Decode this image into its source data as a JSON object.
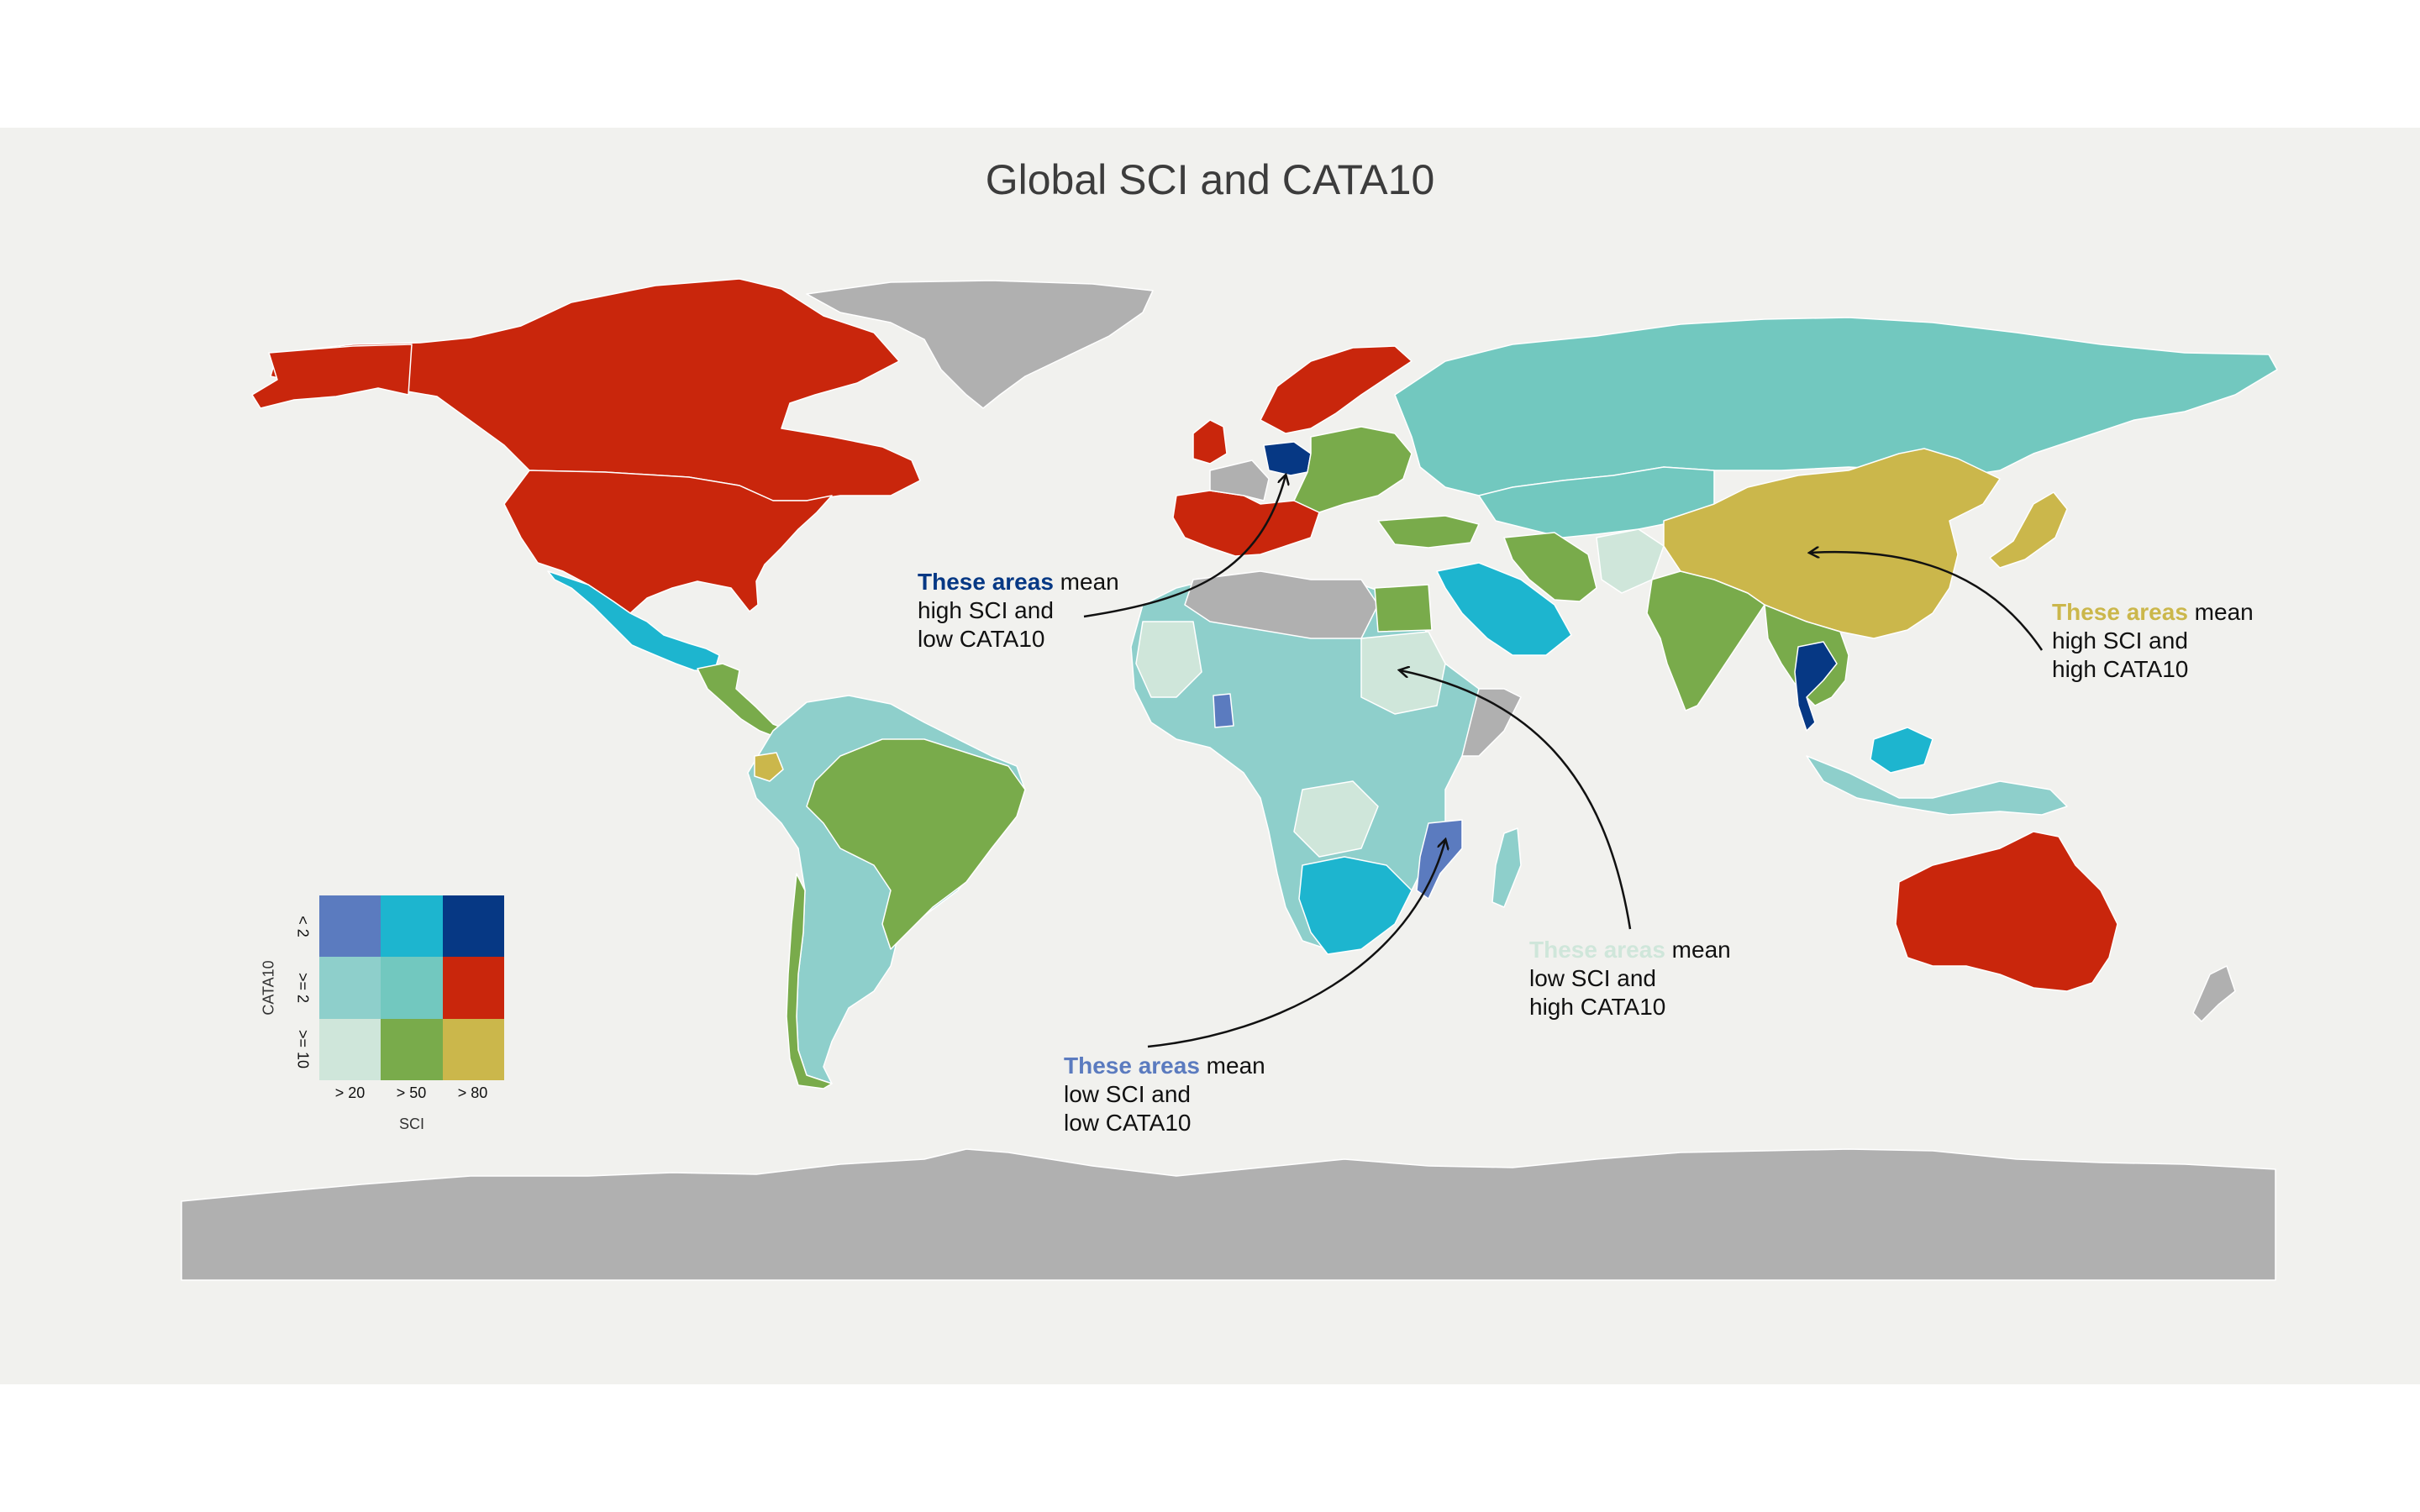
{
  "title": "Global SCI and CATA10",
  "colors": {
    "background": "#f1f1ee",
    "no_data": "#b0b0b0",
    "border": "#ffffff",
    "bivariate": {
      "low_sci_low_cata": "#5b7bbf",
      "mid_sci_low_cata": "#1db5cf",
      "high_sci_low_cata": "#063884",
      "low_sci_mid_cata": "#8ecfcb",
      "mid_sci_mid_cata": "#72c8bf",
      "high_sci_mid_cata": "#c9260c",
      "low_sci_high_cata": "#cfe6da",
      "mid_sci_high_cata": "#79ab4b",
      "high_sci_high_cata": "#cbb74b"
    }
  },
  "annotations": [
    {
      "id": "high-sci-low-cata",
      "highlight": "These areas",
      "rest": " mean",
      "line2": "high SCI and",
      "line3": "low CATA10",
      "color": "#063884"
    },
    {
      "id": "high-sci-high-cata",
      "highlight": "These areas",
      "rest": " mean",
      "line2": "high SCI and",
      "line3": "high CATA10",
      "color": "#cbb74b"
    },
    {
      "id": "low-sci-high-cata",
      "highlight": "These areas",
      "rest": " mean",
      "line2": "low SCI and",
      "line3": "high CATA10",
      "color": "#cfe6da"
    },
    {
      "id": "low-sci-low-cata",
      "highlight": "These areas",
      "rest": " mean",
      "line2": "low SCI and",
      "line3": "low CATA10",
      "color": "#5b7bbf"
    }
  ],
  "legend": {
    "x_label": "SCI",
    "y_label": "CATA10",
    "x_ticks": [
      "> 20",
      "> 50",
      "> 80"
    ],
    "y_ticks": [
      "< 2",
      ">= 2",
      ">= 10"
    ],
    "grid": [
      [
        "#5b7bbf",
        "#1db5cf",
        "#063884"
      ],
      [
        "#8ecfcb",
        "#72c8bf",
        "#c9260c"
      ],
      [
        "#cfe6da",
        "#79ab4b",
        "#cbb74b"
      ]
    ]
  },
  "regions": [
    {
      "name": "Greenland",
      "class": "no_data"
    },
    {
      "name": "Canada",
      "class": "high_sci_mid_cata"
    },
    {
      "name": "United States",
      "class": "high_sci_mid_cata"
    },
    {
      "name": "Mexico",
      "class": "mid_sci_low_cata"
    },
    {
      "name": "Brazil",
      "class": "mid_sci_high_cata"
    },
    {
      "name": "Ecuador",
      "class": "high_sci_high_cata"
    },
    {
      "name": "Germany",
      "class": "high_sci_low_cata"
    },
    {
      "name": "China",
      "class": "high_sci_high_cata"
    },
    {
      "name": "Japan",
      "class": "high_sci_high_cata"
    },
    {
      "name": "Thailand",
      "class": "high_sci_low_cata"
    },
    {
      "name": "India",
      "class": "mid_sci_high_cata"
    },
    {
      "name": "Russia",
      "class": "mid_sci_mid_cata"
    },
    {
      "name": "Australia",
      "class": "high_sci_mid_cata"
    },
    {
      "name": "Saudi Arabia",
      "class": "mid_sci_low_cata"
    },
    {
      "name": "Sudan",
      "class": "low_sci_high_cata"
    },
    {
      "name": "Mozambique",
      "class": "low_sci_low_cata"
    },
    {
      "name": "Antarctica",
      "class": "no_data"
    }
  ]
}
